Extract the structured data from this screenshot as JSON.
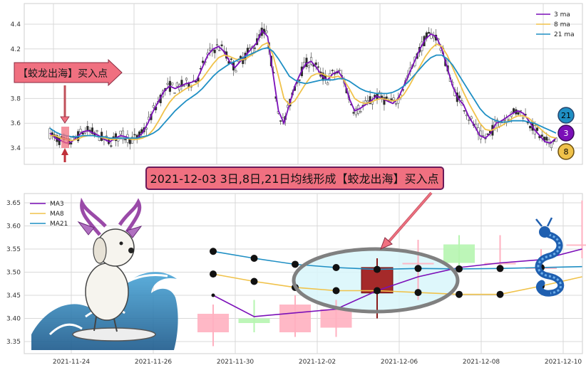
{
  "colors": {
    "ma3": "#7B0FB8",
    "ma8": "#F0C24A",
    "ma21": "#1F8FC4",
    "up_candle": "#808080",
    "down_candle": "#2b2b2b",
    "annotation_fill": "#F07080",
    "annotation_border": "#7B1530",
    "grid": "#d9d9d9",
    "bull_candle_zoom": "#b6f5b0",
    "bear_candle_zoom": "#ffb0c0",
    "signal_candle": "#a52a2a",
    "ellipse": "#808080"
  },
  "top_panel": {
    "annotation_label": "【蛟龙出海】买入点",
    "legend": [
      "3 ma",
      "8 ma",
      "21 ma"
    ],
    "badges": [
      "21",
      "3",
      "8"
    ]
  },
  "banner": {
    "text": "2021-12-03 3日,8日,21日均线形成【蛟龙出海】买入点"
  },
  "icons": {
    "dog_illustration": "surfing-dog-icon",
    "dragon_illustration": "blue-dragon-icon",
    "arrow": "pointer-arrow-icon"
  },
  "chart_data": [
    {
      "type": "line",
      "ylim": [
        3.3,
        4.5
      ],
      "yticks": [
        "3.4",
        "3.6",
        "3.8",
        "4",
        "4.2",
        "4.4"
      ],
      "n_bars": 216,
      "legend_placement": "top-right",
      "grid": true,
      "series": [
        {
          "name": "3 ma",
          "values": [
            3.52,
            3.48,
            3.46,
            3.44,
            3.45,
            3.49,
            3.53,
            3.54,
            3.52,
            3.5,
            3.47,
            3.45,
            3.48,
            3.5,
            3.49,
            3.47,
            3.48,
            3.52,
            3.6,
            3.7,
            3.78,
            3.86,
            3.9,
            3.88,
            3.9,
            3.92,
            3.93,
            3.95,
            4.05,
            4.15,
            4.2,
            4.22,
            4.18,
            4.1,
            4.05,
            4.1,
            4.15,
            4.2,
            4.25,
            4.35,
            4.3,
            4.0,
            3.7,
            3.6,
            3.75,
            3.9,
            4.0,
            4.08,
            4.1,
            4.05,
            3.98,
            3.95,
            4.0,
            4.02,
            3.95,
            3.8,
            3.7,
            3.72,
            3.75,
            3.78,
            3.82,
            3.8,
            3.78,
            3.76,
            3.8,
            3.9,
            4.0,
            4.1,
            4.2,
            4.28,
            4.32,
            4.3,
            4.2,
            4.05,
            3.9,
            3.8,
            3.75,
            3.65,
            3.58,
            3.5,
            3.48,
            3.52,
            3.6,
            3.62,
            3.65,
            3.68,
            3.7,
            3.68,
            3.62,
            3.55,
            3.5,
            3.45,
            3.44,
            3.48
          ]
        },
        {
          "name": "8 ma",
          "values": [
            3.5,
            3.5,
            3.48,
            3.47,
            3.46,
            3.47,
            3.49,
            3.5,
            3.5,
            3.49,
            3.48,
            3.47,
            3.47,
            3.48,
            3.48,
            3.47,
            3.47,
            3.48,
            3.5,
            3.55,
            3.62,
            3.7,
            3.77,
            3.82,
            3.85,
            3.88,
            3.9,
            3.92,
            3.96,
            4.02,
            4.08,
            4.13,
            4.15,
            4.14,
            4.12,
            4.11,
            4.12,
            4.15,
            4.18,
            4.23,
            4.25,
            4.15,
            3.98,
            3.8,
            3.75,
            3.78,
            3.85,
            3.92,
            3.98,
            4.0,
            4.0,
            3.98,
            3.97,
            3.98,
            3.95,
            3.88,
            3.8,
            3.77,
            3.76,
            3.77,
            3.79,
            3.8,
            3.79,
            3.78,
            3.79,
            3.83,
            3.9,
            3.98,
            4.06,
            4.14,
            4.2,
            4.24,
            4.22,
            4.15,
            4.05,
            3.95,
            3.85,
            3.76,
            3.68,
            3.6,
            3.55,
            3.54,
            3.56,
            3.58,
            3.61,
            3.64,
            3.66,
            3.66,
            3.64,
            3.6,
            3.56,
            3.52,
            3.49,
            3.48
          ]
        },
        {
          "name": "21 ma",
          "values": [
            3.56,
            3.53,
            3.51,
            3.5,
            3.49,
            3.49,
            3.5,
            3.5,
            3.5,
            3.49,
            3.49,
            3.48,
            3.48,
            3.48,
            3.48,
            3.48,
            3.48,
            3.49,
            3.5,
            3.52,
            3.55,
            3.6,
            3.65,
            3.7,
            3.74,
            3.78,
            3.81,
            3.84,
            3.88,
            3.93,
            3.98,
            4.02,
            4.05,
            4.08,
            4.1,
            4.12,
            4.14,
            4.16,
            4.18,
            4.2,
            4.21,
            4.18,
            4.12,
            4.05,
            3.98,
            3.95,
            3.93,
            3.92,
            3.93,
            3.94,
            3.95,
            3.95,
            3.95,
            3.96,
            3.96,
            3.94,
            3.91,
            3.88,
            3.86,
            3.85,
            3.84,
            3.84,
            3.84,
            3.85,
            3.87,
            3.9,
            3.94,
            3.99,
            4.04,
            4.09,
            4.13,
            4.15,
            4.15,
            4.12,
            4.07,
            4.0,
            3.93,
            3.86,
            3.79,
            3.72,
            3.67,
            3.64,
            3.62,
            3.61,
            3.61,
            3.62,
            3.62,
            3.62,
            3.61,
            3.6,
            3.58,
            3.56,
            3.54,
            3.52
          ]
        }
      ]
    },
    {
      "type": "line",
      "ylim": [
        3.33,
        3.66
      ],
      "yticks": [
        "3.35",
        "3.40",
        "3.45",
        "3.50",
        "3.55",
        "3.60",
        "3.65"
      ],
      "x_tick_labels": [
        "2021-11-24",
        "2021-11-26",
        "2021-11-30",
        "2021-12-02",
        "2021-12-06",
        "2021-12-08",
        "2021-12-10"
      ],
      "x": [
        "2021-11-29",
        "2021-11-30",
        "2021-12-01",
        "2021-12-02",
        "2021-12-03",
        "2021-12-06",
        "2021-12-07",
        "2021-12-08",
        "2021-12-09",
        "2021-12-10"
      ],
      "legend": [
        "MA3",
        "MA8",
        "MA21"
      ],
      "legend_placement": "top-left",
      "grid": true,
      "series": [
        {
          "name": "MA3",
          "values": [
            3.45,
            3.404,
            3.412,
            3.42,
            3.46,
            3.49,
            3.51,
            3.52,
            3.527,
            3.55
          ]
        },
        {
          "name": "MA8",
          "values": [
            3.496,
            3.48,
            3.467,
            3.46,
            3.46,
            3.456,
            3.452,
            3.452,
            3.47,
            3.49
          ]
        },
        {
          "name": "MA21",
          "values": [
            3.545,
            3.53,
            3.517,
            3.51,
            3.506,
            3.508,
            3.507,
            3.508,
            3.51,
            3.512
          ]
        }
      ],
      "candles": [
        {
          "date": "2021-11-29",
          "open": 3.41,
          "close": 3.37,
          "high": 3.43,
          "low": 3.34
        },
        {
          "date": "2021-11-30",
          "open": 3.39,
          "close": 3.4,
          "high": 3.44,
          "low": 3.37
        },
        {
          "date": "2021-12-01",
          "open": 3.43,
          "close": 3.37,
          "high": 3.45,
          "low": 3.36
        },
        {
          "date": "2021-12-02",
          "open": 3.42,
          "close": 3.38,
          "high": 3.44,
          "low": 3.36
        },
        {
          "date": "2021-12-03",
          "open": 3.51,
          "close": 3.455,
          "high": 3.53,
          "low": 3.4
        },
        {
          "date": "2021-12-06",
          "open": 3.52,
          "close": 3.52,
          "high": 3.57,
          "low": 3.44
        },
        {
          "date": "2021-12-07",
          "open": 3.52,
          "close": 3.56,
          "high": 3.58,
          "low": 3.51
        },
        {
          "date": "2021-12-08",
          "open": 3.52,
          "close": 3.52,
          "high": 3.58,
          "low": 3.5
        },
        {
          "date": "2021-12-09",
          "open": 3.51,
          "close": 3.51,
          "high": 3.55,
          "low": 3.49
        },
        {
          "date": "2021-12-10",
          "open": 3.56,
          "close": 3.56,
          "high": 3.655,
          "low": 3.53
        }
      ]
    }
  ]
}
